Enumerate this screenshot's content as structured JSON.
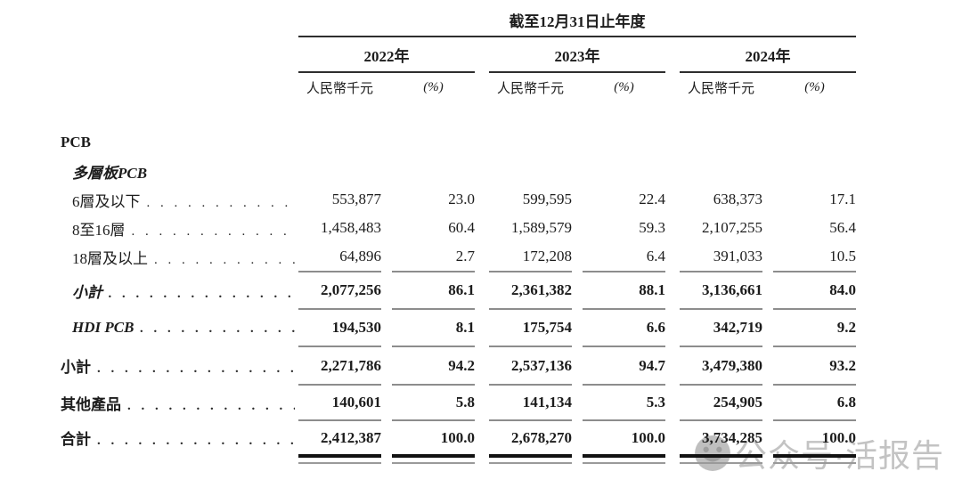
{
  "table": {
    "period_header": "截至12月31日止年度",
    "years": [
      "2022年",
      "2023年",
      "2024年"
    ],
    "unit_label": "人民幣千元",
    "percent_label": "(%)",
    "leader_dots": ". . . . . . . . . . . . . . . . . . . . . . . . . . . . . . . .",
    "rows": [
      {
        "label": "PCB",
        "style": "bold",
        "indent": 0,
        "dots": false,
        "rule_below": "none",
        "values": []
      },
      {
        "label": "多層板PCB",
        "style": "bold-italic",
        "indent": 1,
        "dots": false,
        "rule_below": "none",
        "values": []
      },
      {
        "label": "6層及以下",
        "style": "regular",
        "indent": 1,
        "dots": true,
        "rule_below": "none",
        "values": [
          "553,877",
          "23.0",
          "599,595",
          "22.4",
          "638,373",
          "17.1"
        ]
      },
      {
        "label": "8至16層",
        "style": "regular",
        "indent": 1,
        "dots": true,
        "rule_below": "none",
        "values": [
          "1,458,483",
          "60.4",
          "1,589,579",
          "59.3",
          "2,107,255",
          "56.4"
        ]
      },
      {
        "label": "18層及以上",
        "style": "regular",
        "indent": 1,
        "dots": true,
        "rule_below": "single",
        "values": [
          "64,896",
          "2.7",
          "172,208",
          "6.4",
          "391,033",
          "10.5"
        ]
      },
      {
        "label": "小計",
        "style": "bold-italic",
        "indent": 1,
        "dots": true,
        "rule_below": "single",
        "values": [
          "2,077,256",
          "86.1",
          "2,361,382",
          "88.1",
          "3,136,661",
          "84.0"
        ]
      },
      {
        "label": "HDI PCB",
        "style": "bold-italic",
        "indent": 1,
        "dots": true,
        "rule_below": "single",
        "values": [
          "194,530",
          "8.1",
          "175,754",
          "6.6",
          "342,719",
          "9.2"
        ]
      },
      {
        "label": "小計",
        "style": "bold",
        "indent": 0,
        "dots": true,
        "rule_below": "single",
        "values": [
          "2,271,786",
          "94.2",
          "2,537,136",
          "94.7",
          "3,479,380",
          "93.2"
        ]
      },
      {
        "label": "其他產品",
        "style": "bold",
        "indent": 0,
        "dots": true,
        "rule_below": "single",
        "values": [
          "140,601",
          "5.8",
          "141,134",
          "5.3",
          "254,905",
          "6.8"
        ]
      },
      {
        "label": "合計",
        "style": "bold",
        "indent": 0,
        "dots": true,
        "rule_below": "double",
        "values": [
          "2,412,387",
          "100.0",
          "2,678,270",
          "100.0",
          "3,734,285",
          "100.0"
        ]
      }
    ]
  },
  "watermark": {
    "text": "公众号·活报告",
    "icon": "smiley-face"
  },
  "colors": {
    "text": "#1c1c1c",
    "rule_dark": "#2e2e2e",
    "rule_gray": "#8d8d8d",
    "total_rule": "#121212",
    "watermark": "#c3c3c3"
  }
}
